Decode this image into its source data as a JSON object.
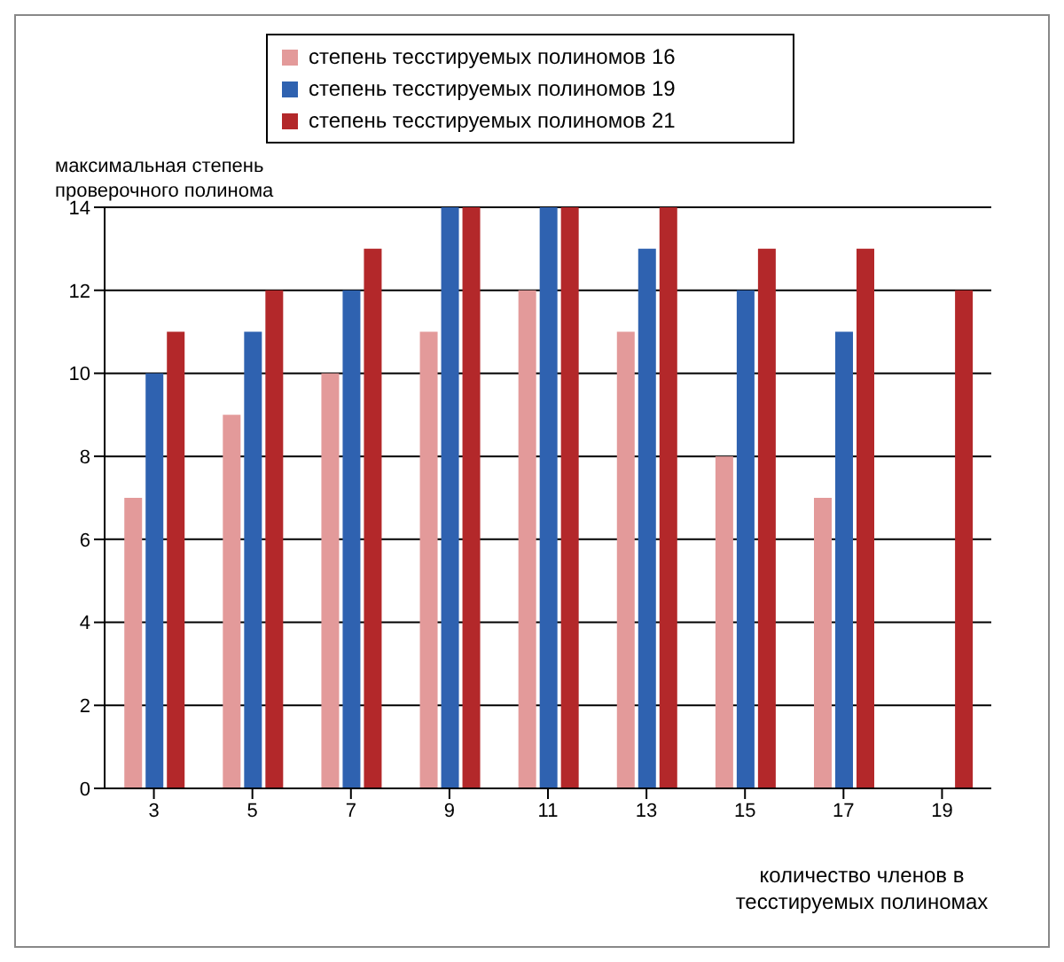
{
  "chart_data": {
    "type": "bar",
    "ylabel": "максимальная степень проверочного полинома",
    "xlabel": "количество членов в тесстируемых полиномах",
    "categories": [
      "3",
      "5",
      "7",
      "9",
      "11",
      "13",
      "15",
      "17",
      "19"
    ],
    "series": [
      {
        "name": "степень тесстируемых полиномов 16",
        "color": "#e39a9a",
        "values": [
          7,
          9,
          10,
          11,
          12,
          11,
          8,
          7,
          null
        ]
      },
      {
        "name": "степень тесстируемых полиномов 19",
        "color": "#2f62b0",
        "values": [
          10,
          11,
          12,
          14,
          14,
          13,
          12,
          11,
          null
        ]
      },
      {
        "name": "степень тесстируемых полиномов 21",
        "color": "#b3282a",
        "values": [
          11,
          12,
          13,
          14,
          14,
          14,
          13,
          13,
          12
        ]
      }
    ],
    "ylim": [
      0,
      14
    ],
    "yticks": [
      0,
      2,
      4,
      6,
      8,
      10,
      12,
      14
    ],
    "grid": "y",
    "legend": "top"
  }
}
